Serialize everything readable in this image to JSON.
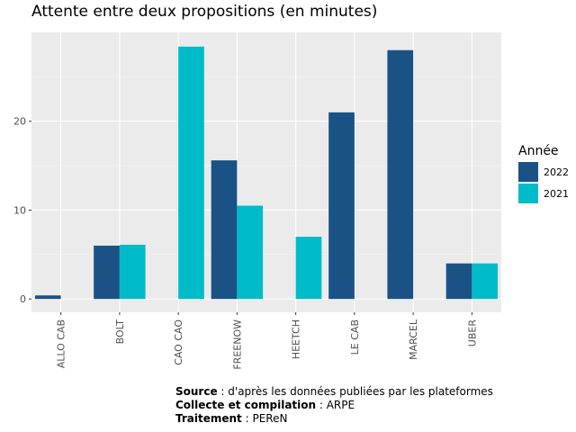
{
  "chart_data": {
    "type": "bar",
    "title": "Attente entre deux propositions (en minutes)",
    "xlabel": "",
    "ylabel": "",
    "categories": [
      "ALLO CAB",
      "BOLT",
      "CAO CAO",
      "FREENOW",
      "HEETCH",
      "LE CAB",
      "MARCEL",
      "UBER"
    ],
    "series": [
      {
        "name": "2022",
        "color": "#1b5286",
        "values": [
          0.4,
          6,
          null,
          15.6,
          null,
          21,
          28,
          4
        ]
      },
      {
        "name": "2021",
        "color": "#00bbc9",
        "values": [
          null,
          6.1,
          28.4,
          10.5,
          7,
          null,
          null,
          4
        ]
      }
    ],
    "ylim": [
      -1.5,
      30
    ],
    "yticks": [
      0,
      10,
      20
    ],
    "grid": true,
    "legend_position": "right",
    "legend_title": "Année"
  },
  "caption": {
    "source_label": "Source",
    "source_text": " : d'après les données publiées par les plateformes",
    "collecte_label": "Collecte et compilation",
    "collecte_text": " : ARPE",
    "traitement_label": "Traitement",
    "traitement_text": " : PEReN"
  }
}
